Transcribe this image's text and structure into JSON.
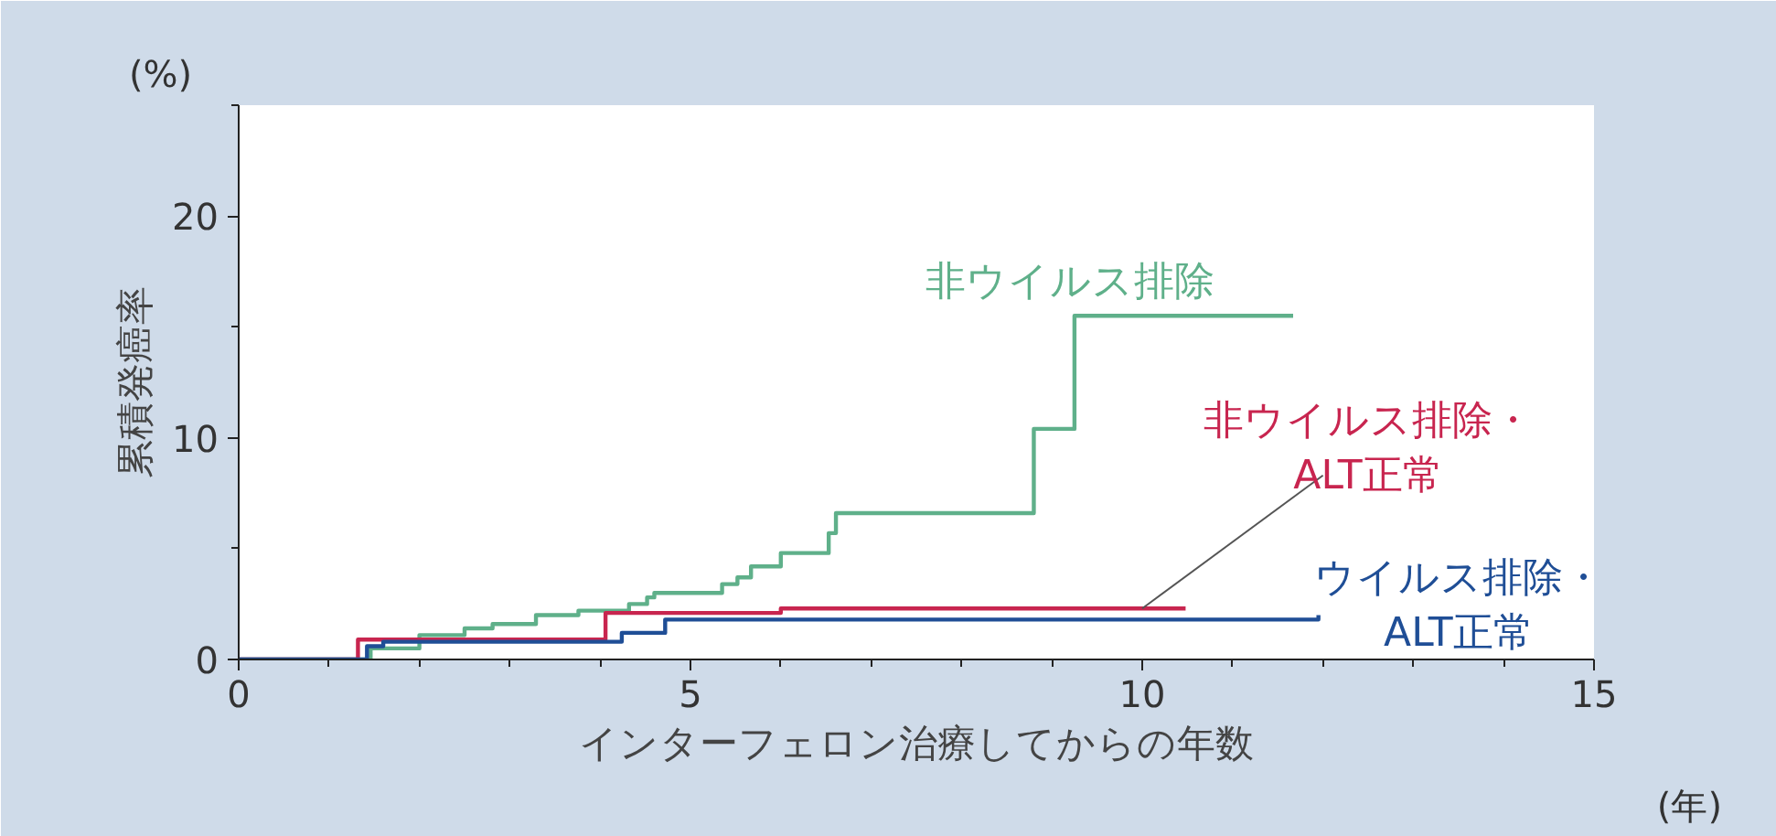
{
  "chart_data": {
    "type": "step",
    "xlabel": "インターフェロン治療してからの年数",
    "ylabel": "累積発癌率",
    "annotations": [
      "(%)",
      "(年)"
    ],
    "xlim": [
      0,
      15
    ],
    "ylim": [
      0,
      25
    ],
    "xticks": [
      0,
      5,
      10,
      15
    ],
    "yticks": [
      0,
      10,
      20
    ],
    "grid": false,
    "marker": "none",
    "line_style": "solid",
    "series": [
      {
        "name": "非ウイルス排除",
        "color": "#5fb08a",
        "x": [
          0,
          1.46,
          2.0,
          2.5,
          2.81,
          3.29,
          3.76,
          4.32,
          4.52,
          4.6,
          5.35,
          5.52,
          5.67,
          6.0,
          6.53,
          6.61,
          8.8,
          9.25,
          11.67
        ],
        "values": [
          0,
          0.5,
          1.1,
          1.4,
          1.6,
          2.0,
          2.2,
          2.5,
          2.8,
          3.0,
          3.4,
          3.7,
          4.2,
          4.8,
          5.7,
          6.6,
          10.4,
          15.5,
          15.5
        ]
      },
      {
        "name": "非ウイルス排除・\nALT正常",
        "color": "#c8254f",
        "x": [
          0,
          1.32,
          4.06,
          6.0,
          10.48
        ],
        "values": [
          0,
          0.9,
          2.1,
          2.3,
          2.3
        ]
      },
      {
        "name": "ウイルス排除・\nALT正常",
        "color": "#1f4e96",
        "x": [
          0,
          1.42,
          1.6,
          4.24,
          4.72,
          11.95
        ],
        "values": [
          0,
          0.6,
          0.8,
          1.2,
          1.8,
          2.0
        ]
      }
    ]
  }
}
